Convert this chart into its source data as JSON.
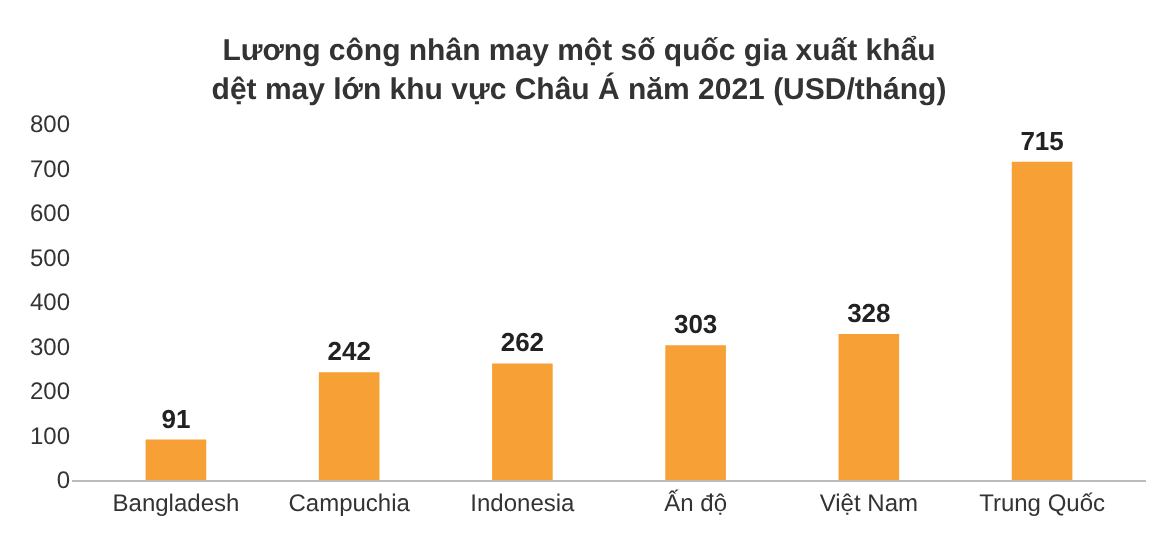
{
  "chart_data": {
    "type": "bar",
    "title": "Lương công nhân may một số quốc gia xuất khẩu\ndệt may lớn khu vực Châu Á năm 2021 (USD/tháng)",
    "categories": [
      "Bangladesh",
      "Campuchia",
      "Indonesia",
      "Ấn độ",
      "Việt Nam",
      "Trung Quốc"
    ],
    "values": [
      91,
      242,
      262,
      303,
      328,
      715
    ],
    "color": "#f7a035",
    "ylim": [
      0,
      800
    ],
    "yticks": [
      0,
      100,
      200,
      300,
      400,
      500,
      600,
      700,
      800
    ],
    "grid": false,
    "data_labels": true
  }
}
